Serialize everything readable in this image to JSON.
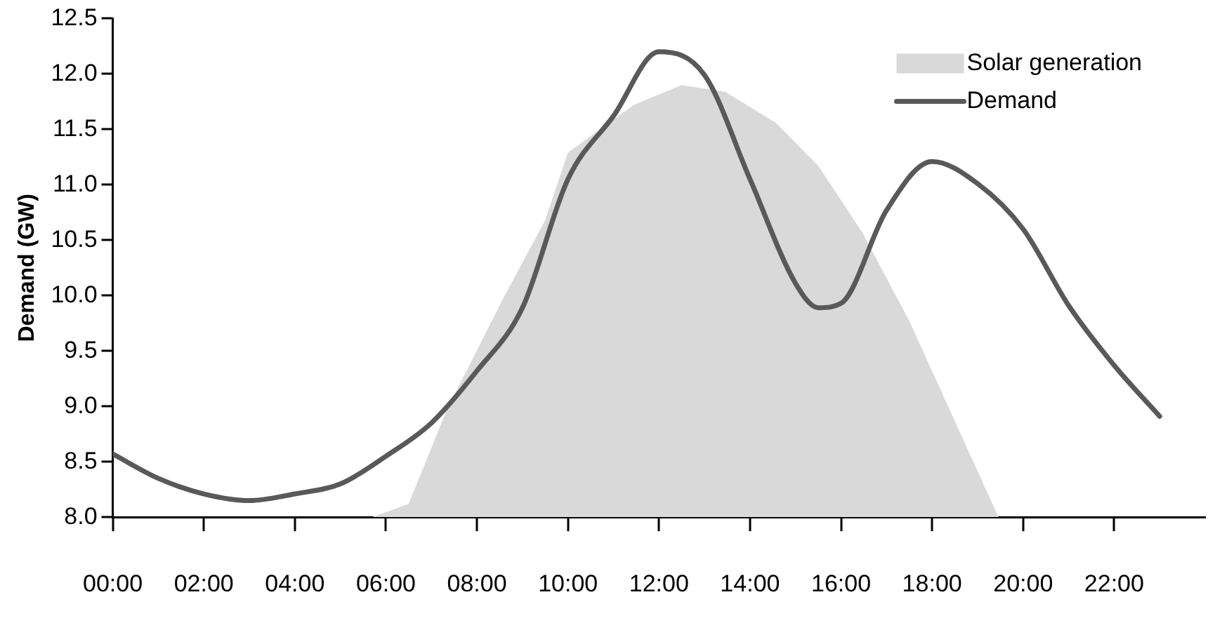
{
  "chart_data": {
    "type": "line",
    "ylabel": "Demand (GW)",
    "xlim": [
      0,
      24
    ],
    "xticks": [
      {
        "value": 0,
        "label": "00:00"
      },
      {
        "value": 2,
        "label": "02:00"
      },
      {
        "value": 4,
        "label": "04:00"
      },
      {
        "value": 6,
        "label": "06:00"
      },
      {
        "value": 8,
        "label": "08:00"
      },
      {
        "value": 10,
        "label": "10:00"
      },
      {
        "value": 12,
        "label": "12:00"
      },
      {
        "value": 14,
        "label": "14:00"
      },
      {
        "value": 16,
        "label": "16:00"
      },
      {
        "value": 18,
        "label": "18:00"
      },
      {
        "value": 20,
        "label": "20:00"
      },
      {
        "value": 22,
        "label": "22:00"
      }
    ],
    "ylim": [
      8,
      12.5
    ],
    "yticks": [
      {
        "value": 8,
        "label": "8.0"
      },
      {
        "value": 8.5,
        "label": "8.5"
      },
      {
        "value": 9,
        "label": "9.0"
      },
      {
        "value": 9.5,
        "label": "9.5"
      },
      {
        "value": 10,
        "label": "10.0"
      },
      {
        "value": 10.5,
        "label": "10.5"
      },
      {
        "value": 11,
        "label": "11.0"
      },
      {
        "value": 11.5,
        "label": "11.5"
      },
      {
        "value": 12,
        "label": "12.0"
      },
      {
        "value": 12.5,
        "label": "12.5"
      }
    ],
    "grid": false,
    "legend": "top right",
    "marker": "none",
    "line_style": "solid",
    "series": [
      {
        "name": "Solar generation",
        "type": "area",
        "color": "#d9d9d9",
        "x": [
          5.7,
          6.5,
          7.35,
          8.6,
          9.5,
          10,
          11.45,
          12.5,
          13.45,
          14.57,
          15.5,
          16.48,
          17.5,
          19.46
        ],
        "values": [
          8.0,
          8.12,
          8.98,
          9.99,
          10.68,
          11.29,
          11.72,
          11.9,
          11.84,
          11.56,
          11.17,
          10.56,
          9.77,
          8.0
        ]
      },
      {
        "name": "Demand",
        "color": "#595959",
        "x": [
          0,
          1,
          2,
          3,
          4,
          5,
          6,
          7,
          8,
          9,
          10,
          11,
          12,
          13,
          14,
          15,
          15.5,
          16,
          17,
          18,
          19,
          20,
          21,
          22,
          23
        ],
        "values": [
          8.57,
          8.35,
          8.21,
          8.15,
          8.21,
          8.3,
          8.55,
          8.85,
          9.32,
          9.89,
          11.05,
          11.62,
          12.2,
          11.99,
          11.05,
          10.11,
          9.89,
          9.93,
          10.77,
          11.21,
          11.01,
          10.6,
          9.91,
          9.37,
          8.91
        ]
      }
    ]
  }
}
